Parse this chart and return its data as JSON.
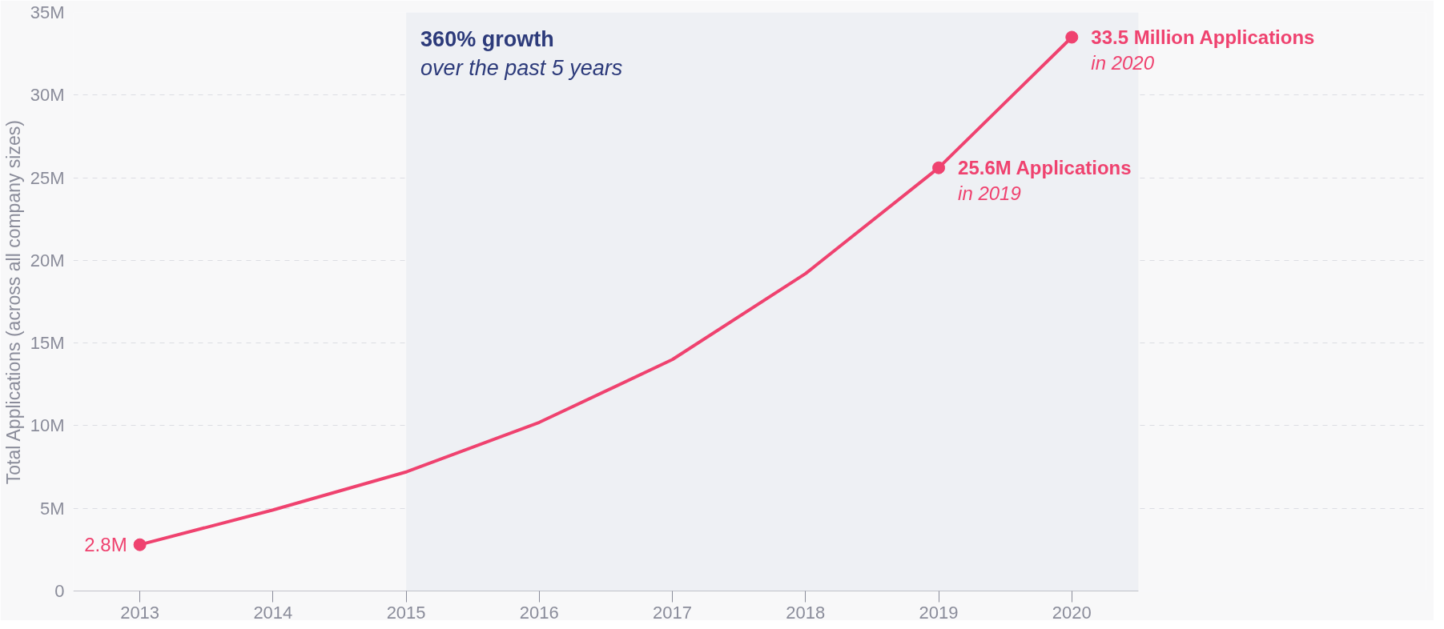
{
  "chart_data": {
    "type": "line",
    "ylabel": "Total Applications (across all company sizes)",
    "x": [
      2013,
      2014,
      2015,
      2016,
      2017,
      2018,
      2019,
      2020
    ],
    "series": [
      {
        "color": "#ef426f",
        "values": [
          2.8,
          4.9,
          7.2,
          10.2,
          14.0,
          19.2,
          25.6,
          33.5
        ],
        "value_labels": [
          "2.8M",
          null,
          null,
          null,
          null,
          null,
          "25.6M Applications",
          "33.5 Million Applications"
        ]
      },
      {
        "type": "scatter",
        "color": "#ef426f",
        "x": [
          2013,
          2019,
          2020
        ],
        "values": [
          2.8,
          25.6,
          33.5
        ],
        "marker": "circle"
      }
    ],
    "xlim": [
      2012.5,
      2020.5
    ],
    "ylim": [
      0,
      35
    ],
    "xticks": [
      2013,
      2014,
      2015,
      2016,
      2017,
      2018,
      2019,
      2020
    ],
    "yticks": [
      0,
      {
        "value": 5,
        "label": "5M"
      },
      {
        "value": 10,
        "label": "10M"
      },
      {
        "value": 15,
        "label": "15M"
      },
      {
        "value": 20,
        "label": "20M"
      },
      {
        "value": 25,
        "label": "25M"
      },
      {
        "value": 30,
        "label": "30M"
      },
      {
        "value": 35,
        "label": "35M"
      }
    ],
    "grid": "y",
    "bands": [
      {
        "axis": "x",
        "from": 2015,
        "to": 2020.5,
        "color": "#eef0f4"
      }
    ],
    "annotations": [
      "360% growth",
      "over the past 5 years",
      {
        "text": "in 2019",
        "x": 2019,
        "y": 25.6
      },
      {
        "text": "in 2020",
        "x": 2020,
        "y": 33.5
      }
    ]
  }
}
